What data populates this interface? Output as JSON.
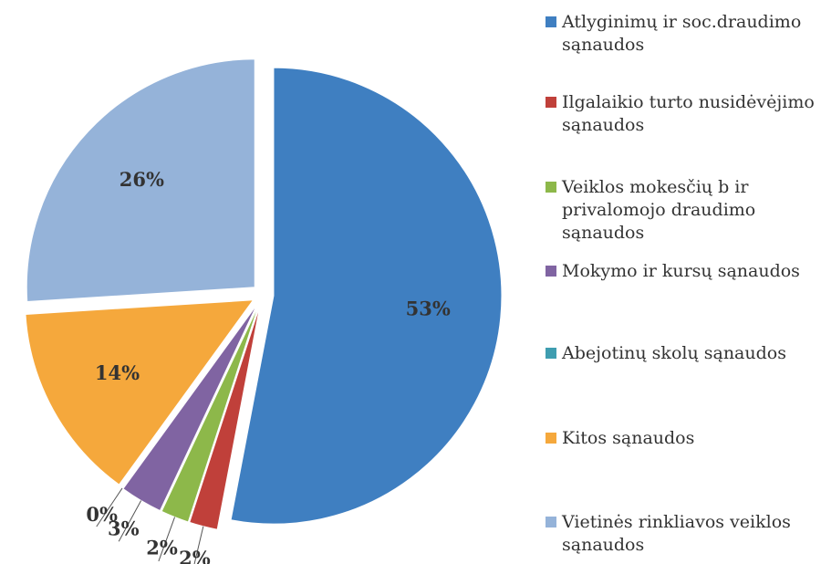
{
  "chart_data": {
    "type": "pie",
    "categories": [
      "Atlyginimų ir soc.draudimo sąnaudos",
      "Ilgalaikio turto nusidėvėjimo sąnaudos",
      "Veiklos mokesčių b ir privalomojo draudimo sąnaudos",
      "Mokymo ir kursų sąnaudos",
      "Abejotinų skolų sąnaudos",
      "Kitos sąnaudos",
      "Vietinės rinkliavos veiklos sąnaudos"
    ],
    "values": [
      53,
      2,
      2,
      3,
      0,
      14,
      26
    ],
    "value_labels": [
      "53%",
      "2%",
      "2%",
      "3%",
      "0%",
      "14%",
      "26%"
    ],
    "colors": [
      "#3f7fc1",
      "#c0403a",
      "#8db84a",
      "#8064a2",
      "#3f9db0",
      "#f5a83c",
      "#95b3d9"
    ]
  }
}
